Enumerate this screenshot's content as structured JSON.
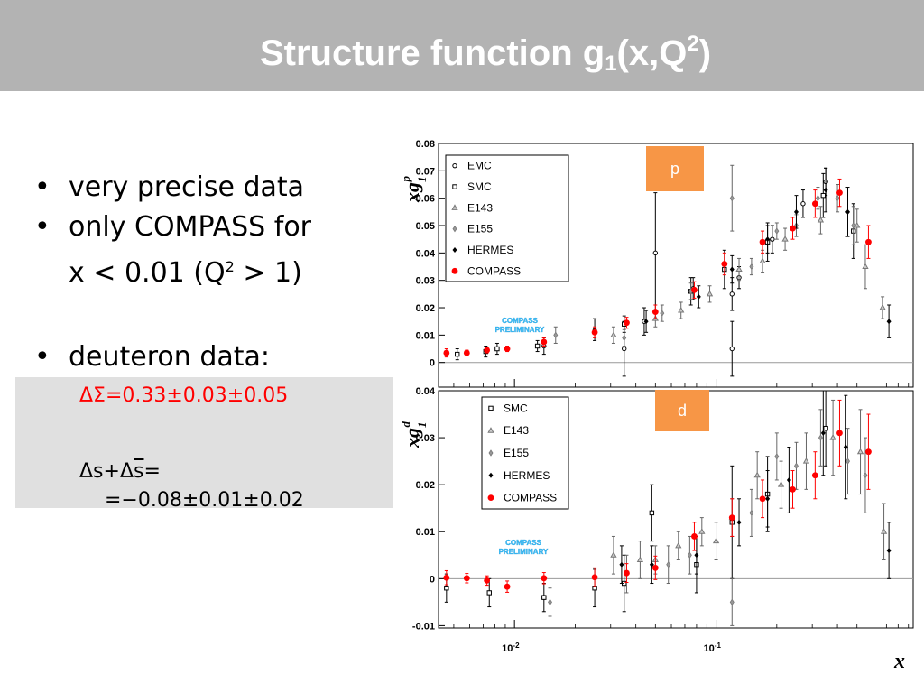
{
  "title": {
    "main": "Structure function g",
    "sub": "1",
    "open": "(x,Q",
    "sup": "2",
    "close": ")"
  },
  "bullets": {
    "b1": "very precise data",
    "b2_line1": "only COMPASS for",
    "b2_line2_pre": "x < 0.01 (Q",
    "b2_line2_sup": "2",
    "b2_line2_post": " > 1)",
    "b3": "deuteron data:"
  },
  "deuteron": {
    "delta_sigma": "ΔΣ=0.33±0.03±0.05",
    "delta_s_pre": "Δs+Δ",
    "delta_s_bar": "s",
    "delta_s_post": "=",
    "delta_s_value": "=−0.08±0.01±0.02"
  },
  "colors": {
    "header_bg": "#b3b3b3",
    "title_text": "#ffffff",
    "highlight_red": "#ff0000",
    "tag_orange": "#f79646",
    "box_grey": "#e0e0e0",
    "compass_red": "#ff0000"
  },
  "chart_data": [
    {
      "type": "scatter",
      "tag": "p",
      "ylabel": "xg",
      "ylabel_sup": "p",
      "ylabel_sub": "1",
      "xlabel": "x",
      "x_scale": "log",
      "xlim": [
        0.0042,
        0.95
      ],
      "ylim": [
        -0.009,
        0.08
      ],
      "yticks": [
        "0",
        "0.01",
        "0.02",
        "0.03",
        "0.04",
        "0.05",
        "0.06",
        "0.07",
        "0.08"
      ],
      "xticks": [
        "10",
        "10"
      ],
      "xtick_sups": [
        "-2",
        "-1"
      ],
      "annotation": [
        "COMPASS",
        "PRELIMINARY"
      ],
      "legend_position": "top-left",
      "series": [
        {
          "name": "EMC",
          "marker": "circle-open",
          "points": [
            {
              "x": 0.014,
              "y": 0.006,
              "e": 0.003
            },
            {
              "x": 0.035,
              "y": 0.005,
              "e": 0.01
            },
            {
              "x": 0.044,
              "y": 0.015,
              "e": 0.005
            },
            {
              "x": 0.05,
              "y": 0.04,
              "e": 0.022
            },
            {
              "x": 0.077,
              "y": 0.027,
              "e": 0.004
            },
            {
              "x": 0.12,
              "y": 0.025,
              "e": 0.006
            },
            {
              "x": 0.12,
              "y": 0.005,
              "e": 0.01
            },
            {
              "x": 0.13,
              "y": 0.031,
              "e": 0.004
            },
            {
              "x": 0.19,
              "y": 0.045,
              "e": 0.005
            },
            {
              "x": 0.27,
              "y": 0.058,
              "e": 0.005
            },
            {
              "x": 0.35,
              "y": 0.066,
              "e": 0.005
            }
          ]
        },
        {
          "name": "SMC",
          "marker": "square-open",
          "points": [
            {
              "x": 0.0052,
              "y": 0.003,
              "e": 0.002
            },
            {
              "x": 0.0072,
              "y": 0.004,
              "e": 0.002
            },
            {
              "x": 0.0082,
              "y": 0.005,
              "e": 0.002
            },
            {
              "x": 0.013,
              "y": 0.006,
              "e": 0.002
            },
            {
              "x": 0.035,
              "y": 0.014,
              "e": 0.003
            },
            {
              "x": 0.075,
              "y": 0.026,
              "e": 0.005
            },
            {
              "x": 0.11,
              "y": 0.034,
              "e": 0.007
            },
            {
              "x": 0.18,
              "y": 0.044,
              "e": 0.007
            },
            {
              "x": 0.34,
              "y": 0.061,
              "e": 0.008
            },
            {
              "x": 0.48,
              "y": 0.048,
              "e": 0.01
            }
          ]
        },
        {
          "name": "E143",
          "marker": "triangle-open",
          "points": [
            {
              "x": 0.031,
              "y": 0.01,
              "e": 0.003
            },
            {
              "x": 0.05,
              "y": 0.016,
              "e": 0.003
            },
            {
              "x": 0.067,
              "y": 0.019,
              "e": 0.003
            },
            {
              "x": 0.093,
              "y": 0.025,
              "e": 0.003
            },
            {
              "x": 0.13,
              "y": 0.034,
              "e": 0.004
            },
            {
              "x": 0.17,
              "y": 0.037,
              "e": 0.004
            },
            {
              "x": 0.22,
              "y": 0.045,
              "e": 0.004
            },
            {
              "x": 0.33,
              "y": 0.052,
              "e": 0.005
            },
            {
              "x": 0.5,
              "y": 0.05,
              "e": 0.006
            },
            {
              "x": 0.55,
              "y": 0.035,
              "e": 0.008
            },
            {
              "x": 0.67,
              "y": 0.02,
              "e": 0.004
            }
          ]
        },
        {
          "name": "E155",
          "marker": "diamond",
          "points": [
            {
              "x": 0.016,
              "y": 0.01,
              "e": 0.003
            },
            {
              "x": 0.035,
              "y": 0.009,
              "e": 0.003
            },
            {
              "x": 0.054,
              "y": 0.018,
              "e": 0.003
            },
            {
              "x": 0.075,
              "y": 0.026,
              "e": 0.003
            },
            {
              "x": 0.12,
              "y": 0.06,
              "e": 0.012
            },
            {
              "x": 0.15,
              "y": 0.035,
              "e": 0.003
            },
            {
              "x": 0.2,
              "y": 0.048,
              "e": 0.003
            },
            {
              "x": 0.25,
              "y": 0.05,
              "e": 0.004
            },
            {
              "x": 0.32,
              "y": 0.06,
              "e": 0.004
            },
            {
              "x": 0.4,
              "y": 0.06,
              "e": 0.005
            },
            {
              "x": 0.48,
              "y": 0.05,
              "e": 0.007
            }
          ]
        },
        {
          "name": "HERMES",
          "marker": "diamond-filled",
          "points": [
            {
              "x": 0.025,
              "y": 0.012,
              "e": 0.004
            },
            {
              "x": 0.045,
              "y": 0.015,
              "e": 0.004
            },
            {
              "x": 0.082,
              "y": 0.024,
              "e": 0.004
            },
            {
              "x": 0.12,
              "y": 0.034,
              "e": 0.005
            },
            {
              "x": 0.18,
              "y": 0.045,
              "e": 0.005
            },
            {
              "x": 0.25,
              "y": 0.055,
              "e": 0.006
            },
            {
              "x": 0.35,
              "y": 0.063,
              "e": 0.008
            },
            {
              "x": 0.45,
              "y": 0.055,
              "e": 0.009
            },
            {
              "x": 0.72,
              "y": 0.015,
              "e": 0.006
            }
          ]
        },
        {
          "name": "COMPASS",
          "marker": "dot-red",
          "points": [
            {
              "x": 0.0046,
              "y": 0.0035,
              "e": 0.0015
            },
            {
              "x": 0.0058,
              "y": 0.0035,
              "e": 0.001
            },
            {
              "x": 0.0073,
              "y": 0.0045,
              "e": 0.001
            },
            {
              "x": 0.0092,
              "y": 0.005,
              "e": 0.001
            },
            {
              "x": 0.014,
              "y": 0.0075,
              "e": 0.0015
            },
            {
              "x": 0.025,
              "y": 0.011,
              "e": 0.002
            },
            {
              "x": 0.036,
              "y": 0.0145,
              "e": 0.002
            },
            {
              "x": 0.05,
              "y": 0.0185,
              "e": 0.0025
            },
            {
              "x": 0.078,
              "y": 0.0265,
              "e": 0.003
            },
            {
              "x": 0.11,
              "y": 0.036,
              "e": 0.004
            },
            {
              "x": 0.17,
              "y": 0.044,
              "e": 0.004
            },
            {
              "x": 0.24,
              "y": 0.049,
              "e": 0.004
            },
            {
              "x": 0.31,
              "y": 0.058,
              "e": 0.005
            },
            {
              "x": 0.41,
              "y": 0.062,
              "e": 0.005
            },
            {
              "x": 0.57,
              "y": 0.044,
              "e": 0.006
            }
          ]
        }
      ]
    },
    {
      "type": "scatter",
      "tag": "d",
      "ylabel": "xg",
      "ylabel_sup": "d",
      "ylabel_sub": "1",
      "xlabel": "x",
      "x_scale": "log",
      "xlim": [
        0.0042,
        0.95
      ],
      "ylim": [
        -0.0105,
        0.04
      ],
      "yticks": [
        "-0.01",
        "0",
        "0.01",
        "0.02",
        "0.03",
        "0.04"
      ],
      "xticks": [
        "10",
        "10"
      ],
      "xtick_sups": [
        "-2",
        "-1"
      ],
      "annotation": [
        "COMPASS",
        "PRELIMINARY"
      ],
      "legend_position": "top-left",
      "series": [
        {
          "name": "SMC",
          "marker": "square-open",
          "points": [
            {
              "x": 0.0046,
              "y": -0.002,
              "e": 0.003
            },
            {
              "x": 0.0075,
              "y": -0.003,
              "e": 0.003
            },
            {
              "x": 0.014,
              "y": -0.004,
              "e": 0.003
            },
            {
              "x": 0.025,
              "y": -0.002,
              "e": 0.004
            },
            {
              "x": 0.035,
              "y": -0.001,
              "e": 0.006
            },
            {
              "x": 0.048,
              "y": 0.014,
              "e": 0.006
            },
            {
              "x": 0.08,
              "y": 0.003,
              "e": 0.006
            },
            {
              "x": 0.12,
              "y": 0.012,
              "e": 0.012
            },
            {
              "x": 0.18,
              "y": 0.018,
              "e": 0.008
            },
            {
              "x": 0.35,
              "y": 0.032,
              "e": 0.008
            }
          ]
        },
        {
          "name": "E143",
          "marker": "triangle-open",
          "points": [
            {
              "x": 0.031,
              "y": 0.005,
              "e": 0.004
            },
            {
              "x": 0.042,
              "y": 0.004,
              "e": 0.004
            },
            {
              "x": 0.05,
              "y": 0.004,
              "e": 0.003
            },
            {
              "x": 0.065,
              "y": 0.007,
              "e": 0.003
            },
            {
              "x": 0.085,
              "y": 0.01,
              "e": 0.003
            },
            {
              "x": 0.1,
              "y": 0.008,
              "e": 0.004
            },
            {
              "x": 0.12,
              "y": 0.013,
              "e": 0.004
            },
            {
              "x": 0.16,
              "y": 0.022,
              "e": 0.005
            },
            {
              "x": 0.21,
              "y": 0.02,
              "e": 0.005
            },
            {
              "x": 0.28,
              "y": 0.025,
              "e": 0.006
            },
            {
              "x": 0.38,
              "y": 0.03,
              "e": 0.008
            },
            {
              "x": 0.52,
              "y": 0.027,
              "e": 0.009
            },
            {
              "x": 0.68,
              "y": 0.01,
              "e": 0.006
            }
          ]
        },
        {
          "name": "E155",
          "marker": "diamond",
          "points": [
            {
              "x": 0.015,
              "y": -0.005,
              "e": 0.003
            },
            {
              "x": 0.036,
              "y": 0.001,
              "e": 0.004
            },
            {
              "x": 0.058,
              "y": 0.003,
              "e": 0.004
            },
            {
              "x": 0.074,
              "y": 0.005,
              "e": 0.004
            },
            {
              "x": 0.12,
              "y": -0.005,
              "e": 0.005
            },
            {
              "x": 0.15,
              "y": 0.014,
              "e": 0.005
            },
            {
              "x": 0.2,
              "y": 0.026,
              "e": 0.005
            },
            {
              "x": 0.25,
              "y": 0.024,
              "e": 0.005
            },
            {
              "x": 0.33,
              "y": 0.03,
              "e": 0.006
            },
            {
              "x": 0.45,
              "y": 0.025,
              "e": 0.007
            },
            {
              "x": 0.55,
              "y": 0.022,
              "e": 0.008
            }
          ]
        },
        {
          "name": "HERMES",
          "marker": "diamond-filled",
          "points": [
            {
              "x": 0.034,
              "y": 0.003,
              "e": 0.004
            },
            {
              "x": 0.048,
              "y": 0.003,
              "e": 0.004
            },
            {
              "x": 0.08,
              "y": 0.005,
              "e": 0.004
            },
            {
              "x": 0.13,
              "y": 0.012,
              "e": 0.005
            },
            {
              "x": 0.18,
              "y": 0.017,
              "e": 0.006
            },
            {
              "x": 0.23,
              "y": 0.021,
              "e": 0.007
            },
            {
              "x": 0.34,
              "y": 0.031,
              "e": 0.009
            },
            {
              "x": 0.44,
              "y": 0.028,
              "e": 0.011
            },
            {
              "x": 0.72,
              "y": 0.006,
              "e": 0.006
            }
          ]
        },
        {
          "name": "COMPASS",
          "marker": "dot-red",
          "points": [
            {
              "x": 0.0046,
              "y": 0.0002,
              "e": 0.0015
            },
            {
              "x": 0.0058,
              "y": 0.0001,
              "e": 0.001
            },
            {
              "x": 0.0073,
              "y": -0.0004,
              "e": 0.001
            },
            {
              "x": 0.0092,
              "y": -0.0017,
              "e": 0.0012
            },
            {
              "x": 0.014,
              "y": 0.0001,
              "e": 0.0012
            },
            {
              "x": 0.025,
              "y": 0.0003,
              "e": 0.002
            },
            {
              "x": 0.036,
              "y": 0.0012,
              "e": 0.002
            },
            {
              "x": 0.05,
              "y": 0.0023,
              "e": 0.0025
            },
            {
              "x": 0.078,
              "y": 0.009,
              "e": 0.003
            },
            {
              "x": 0.12,
              "y": 0.013,
              "e": 0.004
            },
            {
              "x": 0.17,
              "y": 0.017,
              "e": 0.004
            },
            {
              "x": 0.24,
              "y": 0.019,
              "e": 0.004
            },
            {
              "x": 0.31,
              "y": 0.022,
              "e": 0.005
            },
            {
              "x": 0.41,
              "y": 0.031,
              "e": 0.007
            },
            {
              "x": 0.57,
              "y": 0.027,
              "e": 0.008
            }
          ]
        }
      ]
    }
  ]
}
